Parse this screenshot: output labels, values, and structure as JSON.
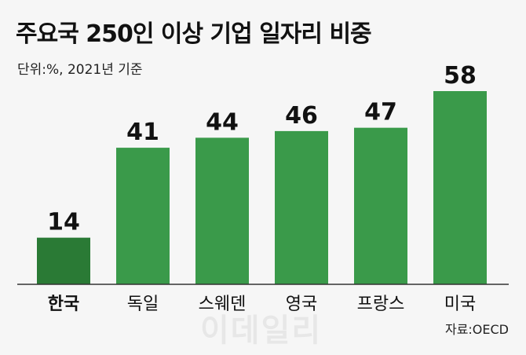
{
  "title": "주요국 250인 이상 기업 일자리 비중",
  "unit_note": "단위:%, 2021년 기준",
  "source": "자료:OECD",
  "watermark": "이데일리",
  "colors": {
    "bar": "#3a9a4a",
    "highlight_bar": "#2a7a35",
    "baseline": "#333333"
  },
  "chart_data": {
    "type": "bar",
    "title": "주요국 250인 이상 기업 일자리 비중",
    "categories": [
      "한국",
      "독일",
      "스웨덴",
      "영국",
      "프랑스",
      "미국"
    ],
    "values": [
      14,
      41,
      44,
      46,
      47,
      58
    ],
    "highlight": "한국",
    "ylim": [
      0,
      60
    ],
    "grid": false,
    "legend": "none"
  }
}
